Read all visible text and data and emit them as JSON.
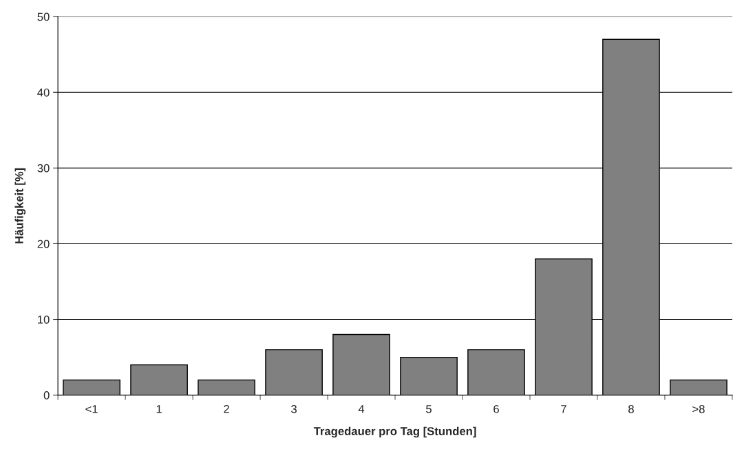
{
  "chart_data": {
    "type": "bar",
    "xlabel": "Tragedauer pro Tag [Stunden]",
    "ylabel": "Häufigkeit [%]",
    "categories": [
      "<1",
      "1",
      "2",
      "3",
      "4",
      "5",
      "6",
      "7",
      "8",
      ">8"
    ],
    "values": [
      2,
      4,
      2,
      6,
      8,
      5,
      6,
      18,
      47,
      2
    ],
    "color": "#808080",
    "ylim": [
      0,
      50
    ],
    "yticks": [
      0,
      10,
      20,
      30,
      40,
      50
    ],
    "grid": "y"
  }
}
